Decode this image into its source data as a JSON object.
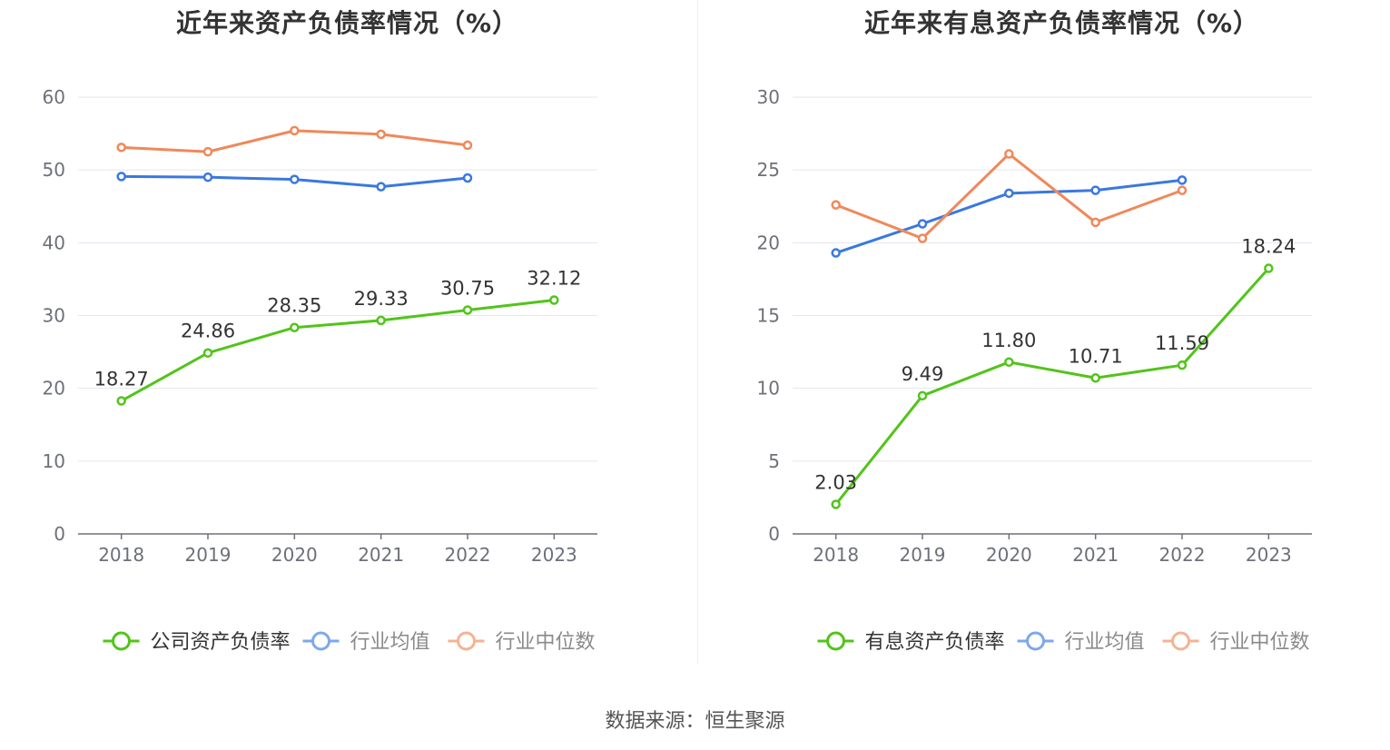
{
  "source": "数据来源：恒生聚源",
  "chart_data": [
    {
      "type": "line",
      "title": "近年来资产负债率情况（%）",
      "categories": [
        "2018",
        "2019",
        "2020",
        "2021",
        "2022",
        "2023"
      ],
      "ylim": [
        0,
        60
      ],
      "yticks": [
        0,
        10,
        20,
        30,
        40,
        50,
        60
      ],
      "series": [
        {
          "name": "公司资产负债率",
          "color": "#52c41a",
          "labeled": true,
          "values": [
            18.27,
            24.86,
            28.35,
            29.33,
            30.75,
            32.12
          ],
          "labels": [
            "18.27",
            "24.86",
            "28.35",
            "29.33",
            "30.75",
            "32.12"
          ]
        },
        {
          "name": "行业均值",
          "color": "#3a78e0",
          "labeled": false,
          "values": [
            49.1,
            49.0,
            48.7,
            47.7,
            48.9,
            null
          ]
        },
        {
          "name": "行业中位数",
          "color": "#f0885a",
          "labeled": false,
          "values": [
            53.1,
            52.5,
            55.4,
            54.9,
            53.4,
            null
          ]
        }
      ]
    },
    {
      "type": "line",
      "title": "近年来有息资产负债率情况（%）",
      "categories": [
        "2018",
        "2019",
        "2020",
        "2021",
        "2022",
        "2023"
      ],
      "ylim": [
        0,
        30
      ],
      "yticks": [
        0,
        5,
        10,
        15,
        20,
        25,
        30
      ],
      "series": [
        {
          "name": "有息资产负债率",
          "color": "#52c41a",
          "labeled": true,
          "values": [
            2.03,
            9.49,
            11.8,
            10.71,
            11.59,
            18.24
          ],
          "labels": [
            "2.03",
            "9.49",
            "11.80",
            "10.71",
            "11.59",
            "18.24"
          ]
        },
        {
          "name": "行业均值",
          "color": "#3a78e0",
          "labeled": false,
          "values": [
            19.3,
            21.3,
            23.4,
            23.6,
            24.3,
            null
          ]
        },
        {
          "name": "行业中位数",
          "color": "#f0885a",
          "labeled": false,
          "values": [
            22.6,
            20.3,
            26.1,
            21.4,
            23.6,
            null
          ]
        }
      ]
    }
  ]
}
